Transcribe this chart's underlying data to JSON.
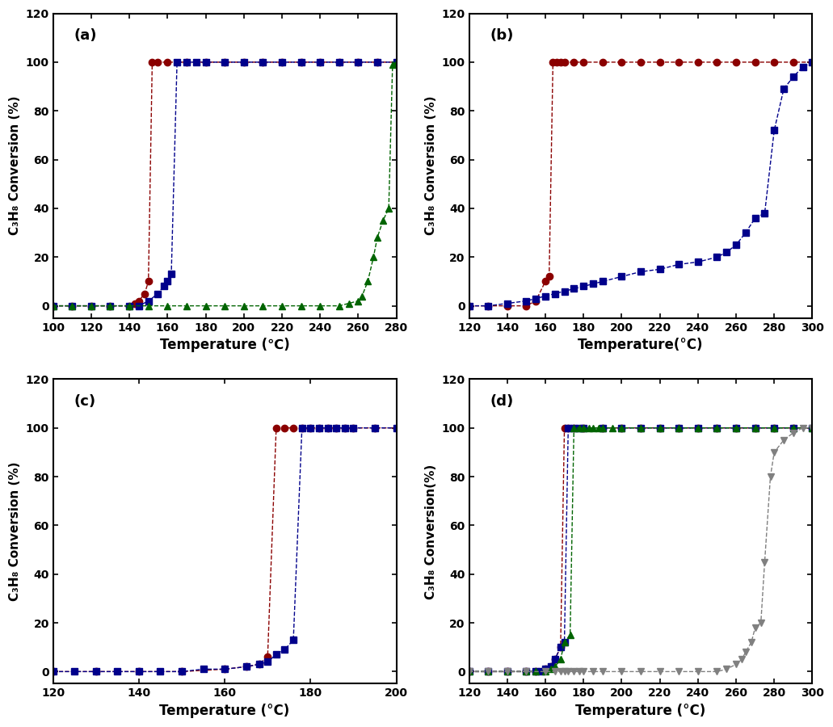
{
  "panel_a": {
    "xlim": [
      100,
      280
    ],
    "ylim": [
      -5,
      120
    ],
    "xticks": [
      100,
      120,
      140,
      160,
      180,
      200,
      220,
      240,
      260,
      280
    ],
    "yticks": [
      0,
      20,
      40,
      60,
      80,
      100,
      120
    ],
    "xlabel": "Temperature (℃)",
    "ylabel": "C₃H₈ Conversion (%)",
    "label": "(a)",
    "series": [
      {
        "x": [
          100,
          110,
          120,
          130,
          140,
          143,
          145,
          148,
          150,
          152,
          155,
          160,
          170,
          180,
          190,
          200,
          210,
          220,
          230,
          240,
          250,
          260,
          270,
          280
        ],
        "y": [
          0,
          0,
          0,
          0,
          0,
          1,
          2,
          5,
          10,
          100,
          100,
          100,
          100,
          100,
          100,
          100,
          100,
          100,
          100,
          100,
          100,
          100,
          100,
          100
        ],
        "color": "#8B0000",
        "marker": "o",
        "markersize": 6,
        "facecolor": "#8B0000",
        "edgecolor": "#8B0000"
      },
      {
        "x": [
          100,
          110,
          120,
          130,
          140,
          145,
          150,
          155,
          158,
          160,
          162,
          165,
          170,
          175,
          180,
          190,
          200,
          210,
          220,
          230,
          240,
          250,
          260,
          270,
          280
        ],
        "y": [
          0,
          0,
          0,
          0,
          0,
          0,
          2,
          5,
          8,
          10,
          13,
          100,
          100,
          100,
          100,
          100,
          100,
          100,
          100,
          100,
          100,
          100,
          100,
          100,
          100
        ],
        "color": "#00008B",
        "marker": "s",
        "markersize": 6,
        "facecolor": "#00008B",
        "edgecolor": "#00008B"
      },
      {
        "x": [
          100,
          110,
          120,
          130,
          140,
          150,
          160,
          170,
          180,
          190,
          200,
          210,
          220,
          230,
          240,
          250,
          255,
          260,
          262,
          265,
          268,
          270,
          273,
          276,
          278,
          280
        ],
        "y": [
          0,
          0,
          0,
          0,
          0,
          0,
          0,
          0,
          0,
          0,
          0,
          0,
          0,
          0,
          0,
          0,
          1,
          2,
          4,
          10,
          20,
          28,
          35,
          40,
          99,
          100
        ],
        "color": "#006400",
        "marker": "^",
        "markersize": 6,
        "facecolor": "#006400",
        "edgecolor": "#006400"
      }
    ]
  },
  "panel_b": {
    "xlim": [
      120,
      300
    ],
    "ylim": [
      -5,
      120
    ],
    "xticks": [
      120,
      140,
      160,
      180,
      200,
      220,
      240,
      260,
      280,
      300
    ],
    "yticks": [
      0,
      20,
      40,
      60,
      80,
      100,
      120
    ],
    "xlabel": "Temperature(°C)",
    "ylabel": "C₃H₈ Conversion (%)",
    "label": "(b)",
    "series": [
      {
        "x": [
          120,
          130,
          140,
          150,
          155,
          160,
          162,
          164,
          166,
          168,
          170,
          175,
          180,
          190,
          200,
          210,
          220,
          230,
          240,
          250,
          260,
          270,
          280,
          290,
          300
        ],
        "y": [
          0,
          0,
          0,
          0,
          2,
          10,
          12,
          100,
          100,
          100,
          100,
          100,
          100,
          100,
          100,
          100,
          100,
          100,
          100,
          100,
          100,
          100,
          100,
          100,
          100
        ],
        "color": "#8B0000",
        "marker": "o",
        "markersize": 6,
        "facecolor": "#8B0000",
        "edgecolor": "#8B0000"
      },
      {
        "x": [
          120,
          130,
          140,
          150,
          155,
          160,
          165,
          170,
          175,
          180,
          185,
          190,
          200,
          210,
          220,
          230,
          240,
          250,
          255,
          260,
          265,
          270,
          275,
          280,
          285,
          290,
          295,
          300
        ],
        "y": [
          0,
          0,
          1,
          2,
          3,
          4,
          5,
          6,
          7,
          8,
          9,
          10,
          12,
          14,
          15,
          17,
          18,
          20,
          22,
          25,
          30,
          36,
          38,
          72,
          89,
          94,
          98,
          100
        ],
        "color": "#00008B",
        "marker": "s",
        "markersize": 6,
        "facecolor": "#00008B",
        "edgecolor": "#00008B"
      }
    ]
  },
  "panel_c": {
    "xlim": [
      120,
      200
    ],
    "ylim": [
      -5,
      120
    ],
    "xticks": [
      120,
      140,
      160,
      180,
      200
    ],
    "yticks": [
      0,
      20,
      40,
      60,
      80,
      100,
      120
    ],
    "xlabel": "Temperature (°C)",
    "ylabel": "C₃H₈ Conversion (%)",
    "label": "(c)",
    "series": [
      {
        "x": [
          120,
          130,
          140,
          150,
          160,
          165,
          168,
          170,
          172,
          174,
          176,
          178,
          180,
          182,
          184,
          186,
          188,
          190,
          195,
          200
        ],
        "y": [
          0,
          0,
          0,
          0,
          1,
          2,
          3,
          6,
          100,
          100,
          100,
          100,
          100,
          100,
          100,
          100,
          100,
          100,
          100,
          100
        ],
        "color": "#8B0000",
        "marker": "o",
        "markersize": 6,
        "facecolor": "#8B0000",
        "edgecolor": "#8B0000"
      },
      {
        "x": [
          120,
          125,
          130,
          135,
          140,
          145,
          150,
          155,
          160,
          165,
          168,
          170,
          172,
          174,
          176,
          178,
          180,
          182,
          184,
          186,
          188,
          190,
          195,
          200
        ],
        "y": [
          0,
          0,
          0,
          0,
          0,
          0,
          0,
          1,
          1,
          2,
          3,
          4,
          7,
          9,
          13,
          100,
          100,
          100,
          100,
          100,
          100,
          100,
          100,
          100
        ],
        "color": "#00008B",
        "marker": "s",
        "markersize": 6,
        "facecolor": "#00008B",
        "edgecolor": "#00008B"
      }
    ]
  },
  "panel_d": {
    "xlim": [
      120,
      300
    ],
    "ylim": [
      -5,
      120
    ],
    "xticks": [
      120,
      140,
      160,
      180,
      200,
      220,
      240,
      260,
      280,
      300
    ],
    "yticks": [
      0,
      20,
      40,
      60,
      80,
      100,
      120
    ],
    "xlabel": "Temperature (°C)",
    "ylabel": "C₃H₈ Conversion(%)",
    "label": "(d)",
    "series": [
      {
        "x": [
          120,
          130,
          140,
          150,
          155,
          160,
          163,
          165,
          168,
          170,
          172,
          175,
          180,
          190,
          200,
          210,
          220,
          230,
          240,
          250,
          260,
          270,
          280,
          290,
          300
        ],
        "y": [
          0,
          0,
          0,
          0,
          0,
          1,
          2,
          5,
          10,
          100,
          100,
          100,
          100,
          100,
          100,
          100,
          100,
          100,
          100,
          100,
          100,
          100,
          100,
          100,
          100
        ],
        "color": "#8B0000",
        "marker": "o",
        "markersize": 6,
        "facecolor": "#8B0000",
        "edgecolor": "#8B0000"
      },
      {
        "x": [
          120,
          130,
          140,
          150,
          155,
          158,
          160,
          163,
          165,
          168,
          170,
          172,
          175,
          178,
          180,
          190,
          200,
          210,
          220,
          230,
          240,
          250,
          260,
          270,
          280,
          290,
          300
        ],
        "y": [
          0,
          0,
          0,
          0,
          0,
          0,
          1,
          2,
          5,
          10,
          12,
          100,
          100,
          100,
          100,
          100,
          100,
          100,
          100,
          100,
          100,
          100,
          100,
          100,
          100,
          100,
          100
        ],
        "color": "#00008B",
        "marker": "s",
        "markersize": 6,
        "facecolor": "#00008B",
        "edgecolor": "#00008B"
      },
      {
        "x": [
          120,
          130,
          140,
          150,
          155,
          160,
          163,
          165,
          168,
          170,
          173,
          175,
          178,
          180,
          183,
          185,
          188,
          190,
          195,
          200,
          210,
          220,
          230,
          240,
          250,
          260,
          270,
          280,
          290,
          300
        ],
        "y": [
          0,
          0,
          0,
          0,
          0,
          0,
          1,
          2,
          5,
          12,
          15,
          100,
          100,
          100,
          100,
          100,
          100,
          100,
          100,
          100,
          100,
          100,
          100,
          100,
          100,
          100,
          100,
          100,
          100,
          100
        ],
        "color": "#006400",
        "marker": "^",
        "markersize": 6,
        "facecolor": "#006400",
        "edgecolor": "#006400"
      },
      {
        "x": [
          120,
          130,
          140,
          150,
          160,
          165,
          168,
          170,
          172,
          175,
          178,
          180,
          185,
          190,
          200,
          210,
          220,
          230,
          240,
          250,
          255,
          260,
          263,
          265,
          268,
          270,
          273,
          275,
          278,
          280,
          285,
          290,
          295,
          300
        ],
        "y": [
          0,
          0,
          0,
          0,
          0,
          0,
          0,
          0,
          0,
          0,
          0,
          0,
          0,
          0,
          0,
          0,
          0,
          0,
          0,
          0,
          1,
          3,
          5,
          8,
          12,
          18,
          20,
          45,
          80,
          90,
          95,
          98,
          100,
          100
        ],
        "color": "#808080",
        "marker": "v",
        "markersize": 6,
        "facecolor": "#808080",
        "edgecolor": "#808080"
      }
    ]
  }
}
